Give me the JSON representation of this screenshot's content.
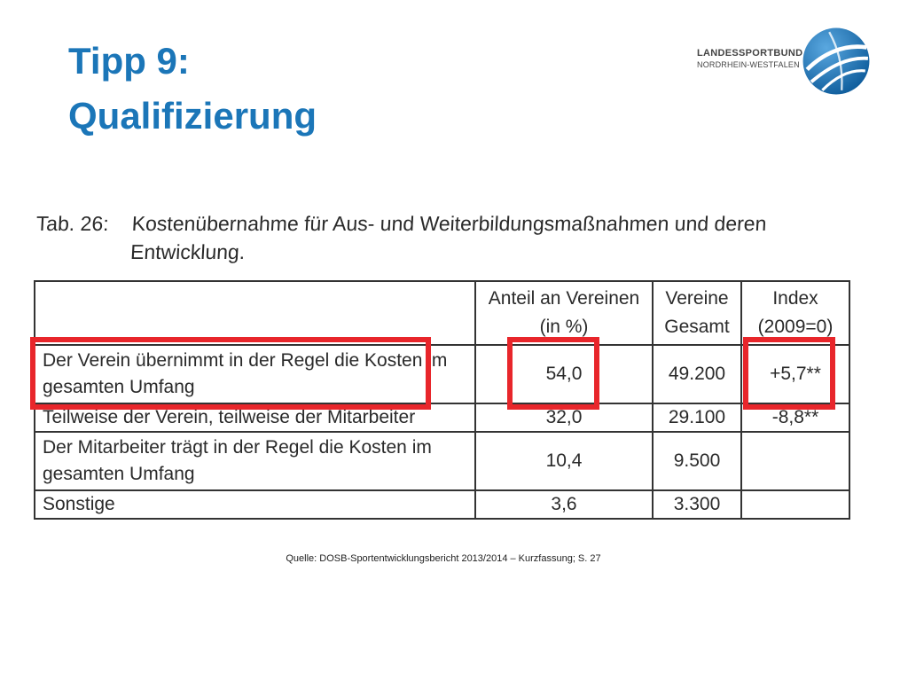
{
  "slide": {
    "title_line1": "Tipp 9:",
    "title_line2": "Qualifizierung"
  },
  "logo": {
    "line1": "LANDESSPORTBUND",
    "line2": "NORDRHEIN-WESTFALEN",
    "emblem_icon": "sports-globe-icon",
    "colors": {
      "blue": "#1b76b8",
      "light": "#ffffff"
    }
  },
  "table": {
    "caption_number": "Tab. 26:",
    "caption_text": "Kostenübernahme für Aus- und Weiterbildungsmaßnahmen und deren Entwicklung.",
    "headers": [
      "",
      "Anteil an Vereinen (in %)",
      "Vereine Gesamt",
      "Index (2009=0)"
    ],
    "rows": [
      {
        "label": "Der Verein übernimmt in der Regel die Kosten im gesamten Umfang",
        "share": "54,0",
        "clubs": "49.200",
        "index": "+5,7**"
      },
      {
        "label": "Teilweise der Verein, teilweise der Mitarbeiter",
        "share": "32,0",
        "clubs": "29.100",
        "index": "-8,8**"
      },
      {
        "label": "Der Mitarbeiter trägt in der Regel die Kosten im gesamten Umfang",
        "share": "10,4",
        "clubs": "9.500",
        "index": ""
      },
      {
        "label": "Sonstige",
        "share": "3,6",
        "clubs": "3.300",
        "index": ""
      }
    ]
  },
  "highlight_color": "#e8262b",
  "title_color": "#1b76b8",
  "source": "Quelle: DOSB-Sportentwicklungsbericht 2013/2014 – Kurzfassung; S. 27"
}
